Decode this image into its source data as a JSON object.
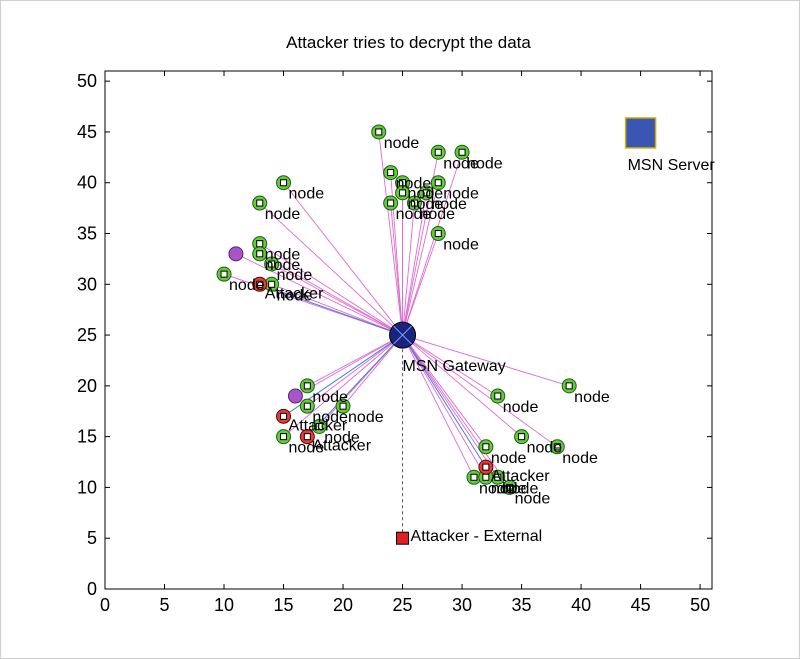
{
  "chart_data": {
    "type": "scatter",
    "title": "Attacker tries to decrypt the data",
    "xlabel": "",
    "ylabel": "",
    "xlim": [
      0,
      51
    ],
    "ylim": [
      0,
      51
    ],
    "xticks": [
      0,
      5,
      10,
      15,
      20,
      25,
      30,
      35,
      40,
      45,
      50
    ],
    "yticks": [
      0,
      5,
      10,
      15,
      20,
      25,
      30,
      35,
      40,
      45,
      50
    ],
    "grid": false,
    "legend": "none",
    "gateway": {
      "label": "MSN Gateway",
      "x": 25,
      "y": 25
    },
    "server": {
      "label": "MSN Server",
      "x": 45,
      "y": 45
    },
    "external_attacker": {
      "label": "Attacker - External",
      "x": 25,
      "y": 5
    },
    "nodes": [
      {
        "label": "node",
        "x": 23,
        "y": 45
      },
      {
        "label": "node",
        "x": 28,
        "y": 43
      },
      {
        "label": "node",
        "x": 30,
        "y": 43
      },
      {
        "label": "node",
        "x": 24,
        "y": 41
      },
      {
        "label": "node",
        "x": 25,
        "y": 40
      },
      {
        "label": "node",
        "x": 28,
        "y": 40
      },
      {
        "label": "node",
        "x": 25,
        "y": 39
      },
      {
        "label": "node",
        "x": 27,
        "y": 39
      },
      {
        "label": "node",
        "x": 24,
        "y": 38
      },
      {
        "label": "node",
        "x": 26,
        "y": 38
      },
      {
        "label": "node",
        "x": 28,
        "y": 35
      },
      {
        "label": "node",
        "x": 15,
        "y": 40
      },
      {
        "label": "node",
        "x": 13,
        "y": 38
      },
      {
        "label": "node",
        "x": 13,
        "y": 34
      },
      {
        "label": "node",
        "x": 13,
        "y": 33
      },
      {
        "label": "node",
        "x": 14,
        "y": 32
      },
      {
        "label": "node",
        "x": 14,
        "y": 30
      },
      {
        "label": "node",
        "x": 10,
        "y": 31
      },
      {
        "label": "node",
        "x": 17,
        "y": 20
      },
      {
        "label": "node",
        "x": 17,
        "y": 18
      },
      {
        "label": "node",
        "x": 20,
        "y": 18
      },
      {
        "label": "node",
        "x": 18,
        "y": 16
      },
      {
        "label": "node",
        "x": 15,
        "y": 15
      },
      {
        "label": "node",
        "x": 33,
        "y": 19
      },
      {
        "label": "node",
        "x": 39,
        "y": 20
      },
      {
        "label": "node",
        "x": 35,
        "y": 15
      },
      {
        "label": "node",
        "x": 38,
        "y": 14
      },
      {
        "label": "node",
        "x": 32,
        "y": 14
      },
      {
        "label": "node",
        "x": 31,
        "y": 11
      },
      {
        "label": "node",
        "x": 33,
        "y": 11
      },
      {
        "label": "node",
        "x": 32,
        "y": 11
      },
      {
        "label": "node",
        "x": 34,
        "y": 10
      }
    ],
    "attackers": [
      {
        "label": "Attacker",
        "x": 13,
        "y": 30,
        "color": "#e23d3d"
      },
      {
        "label": "Attacker",
        "x": 15,
        "y": 17,
        "color": "#e23d3d"
      },
      {
        "label": "Attacker",
        "x": 17,
        "y": 15,
        "color": "#e23d3d"
      },
      {
        "label": "Attacker",
        "x": 32,
        "y": 12,
        "color": "#e23d3d"
      }
    ],
    "compromised": [
      {
        "x": 11,
        "y": 33
      },
      {
        "x": 16,
        "y": 19
      }
    ],
    "colors": {
      "node_fill": "#66cc33",
      "link_line": "#e06ad2",
      "attacker_link": "#3f7fd6",
      "external_link": "#555555",
      "gateway": "#1a237e",
      "server": "#3a55b4",
      "server_border": "#c8b400",
      "compromised": "#a855c8",
      "external_attacker": "#e02020"
    }
  }
}
